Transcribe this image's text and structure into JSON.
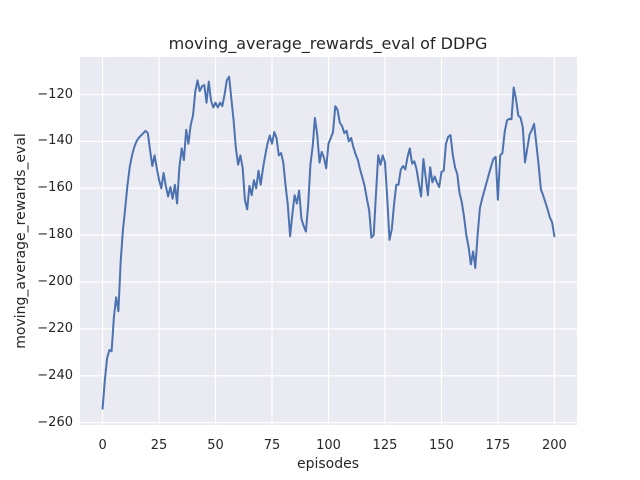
{
  "figure": {
    "title": "moving_average_rewards_eval of DDPG",
    "xlabel": "episodes",
    "ylabel": "moving_average_rewards_eval",
    "background_color": "#ffffff",
    "axes_background_color": "#eaeaf2",
    "grid_color": "#ffffff",
    "text_color": "#262626"
  },
  "chart_data": {
    "type": "line",
    "title": "moving_average_rewards_eval of DDPG",
    "xlabel": "episodes",
    "ylabel": "moving_average_rewards_eval",
    "grid": true,
    "legend": null,
    "xlim": [
      -10,
      210
    ],
    "ylim": [
      -261,
      -104
    ],
    "x_ticks": [
      0,
      25,
      50,
      75,
      100,
      125,
      150,
      175,
      200
    ],
    "y_ticks": [
      -120,
      -140,
      -160,
      -180,
      -200,
      -220,
      -240,
      -260
    ],
    "series": [
      {
        "name": "moving_average_rewards_eval",
        "color": "#4c72b0",
        "x": [
          0,
          1,
          2,
          3,
          4,
          5,
          6,
          7,
          8,
          9,
          10,
          11,
          12,
          13,
          14,
          15,
          16,
          17,
          18,
          19,
          20,
          21,
          22,
          23,
          24,
          25,
          26,
          27,
          28,
          29,
          30,
          31,
          32,
          33,
          34,
          35,
          36,
          37,
          38,
          39,
          40,
          41,
          42,
          43,
          44,
          45,
          46,
          47,
          48,
          49,
          50,
          51,
          52,
          53,
          54,
          55,
          56,
          57,
          58,
          59,
          60,
          61,
          62,
          63,
          64,
          65,
          66,
          67,
          68,
          69,
          70,
          71,
          72,
          73,
          74,
          75,
          76,
          77,
          78,
          79,
          80,
          81,
          82,
          83,
          84,
          85,
          86,
          87,
          88,
          89,
          90,
          91,
          92,
          93,
          94,
          95,
          96,
          97,
          98,
          99,
          100,
          101,
          102,
          103,
          104,
          105,
          106,
          107,
          108,
          109,
          110,
          111,
          112,
          113,
          114,
          115,
          116,
          117,
          118,
          119,
          120,
          121,
          122,
          123,
          124,
          125,
          126,
          127,
          128,
          129,
          130,
          131,
          132,
          133,
          134,
          135,
          136,
          137,
          138,
          139,
          140,
          141,
          142,
          143,
          144,
          145,
          146,
          147,
          148,
          149,
          150,
          151,
          152,
          153,
          154,
          155,
          156,
          157,
          158,
          159,
          160,
          161,
          162,
          163,
          164,
          165,
          166,
          167,
          168,
          169,
          170,
          171,
          172,
          173,
          174,
          175,
          176,
          177,
          178,
          179,
          180,
          181,
          182,
          183,
          184,
          185,
          186,
          187,
          188,
          189,
          190,
          191,
          192,
          193,
          194,
          195,
          196,
          197,
          198,
          199,
          200
        ],
        "y": [
          -254.0,
          -242.0,
          -232.5,
          -229.0,
          -229.5,
          -215.0,
          -206.5,
          -212.5,
          -191.0,
          -178.0,
          -168.5,
          -159.0,
          -151.0,
          -146.0,
          -142.5,
          -140.0,
          -138.5,
          -137.5,
          -136.5,
          -135.5,
          -136.5,
          -143.5,
          -150.5,
          -146.0,
          -151.5,
          -156.5,
          -160.0,
          -153.5,
          -159.0,
          -163.5,
          -159.5,
          -164.5,
          -158.5,
          -166.5,
          -151.0,
          -143.0,
          -148.0,
          -135.0,
          -141.0,
          -133.0,
          -129.0,
          -119.0,
          -114.0,
          -118.5,
          -116.5,
          -116.0,
          -123.5,
          -114.5,
          -122.5,
          -125.5,
          -123.5,
          -125.5,
          -123.5,
          -125.0,
          -120.0,
          -114.0,
          -112.4,
          -122.0,
          -131.0,
          -143.0,
          -150.0,
          -146.0,
          -151.5,
          -165.0,
          -169.0,
          -159.0,
          -163.0,
          -156.5,
          -160.0,
          -152.5,
          -158.5,
          -151.5,
          -146.0,
          -141.0,
          -137.5,
          -141.0,
          -136.0,
          -138.5,
          -146.0,
          -145.0,
          -149.0,
          -159.0,
          -167.0,
          -180.5,
          -171.0,
          -163.0,
          -166.5,
          -161.0,
          -173.0,
          -176.0,
          -178.5,
          -167.0,
          -150.0,
          -142.0,
          -130.0,
          -137.0,
          -149.0,
          -144.5,
          -147.0,
          -151.5,
          -141.0,
          -138.5,
          -136.0,
          -125.0,
          -126.5,
          -132.0,
          -133.5,
          -136.5,
          -135.5,
          -140.0,
          -138.5,
          -142.5,
          -145.5,
          -148.0,
          -152.0,
          -155.5,
          -159.0,
          -164.5,
          -169.5,
          -181.0,
          -180.0,
          -163.0,
          -146.0,
          -150.0,
          -146.0,
          -149.0,
          -164.0,
          -182.0,
          -177.5,
          -167.0,
          -158.5,
          -158.5,
          -152.0,
          -150.5,
          -152.0,
          -146.5,
          -143.0,
          -149.5,
          -148.5,
          -152.0,
          -158.0,
          -163.5,
          -147.5,
          -155.0,
          -163.0,
          -151.0,
          -157.5,
          -155.0,
          -157.5,
          -159.5,
          -153.0,
          -152.5,
          -141.0,
          -138.0,
          -137.3,
          -145.8,
          -151.0,
          -154.0,
          -162.0,
          -166.0,
          -172.0,
          -180.0,
          -185.0,
          -192.5,
          -187.0,
          -194.0,
          -180.0,
          -168.5,
          -164.5,
          -161.0,
          -157.5,
          -154.0,
          -150.5,
          -147.5,
          -146.6,
          -164.9,
          -146.0,
          -145.0,
          -136.0,
          -131.0,
          -130.4,
          -130.6,
          -117.0,
          -122.0,
          -129.0,
          -129.8,
          -134.0,
          -149.0,
          -143.0,
          -137.0,
          -135.2,
          -132.5,
          -141.0,
          -150.0,
          -160.5,
          -163.0,
          -166.0,
          -169.0,
          -172.5,
          -174.5,
          -180.5
        ]
      }
    ]
  }
}
